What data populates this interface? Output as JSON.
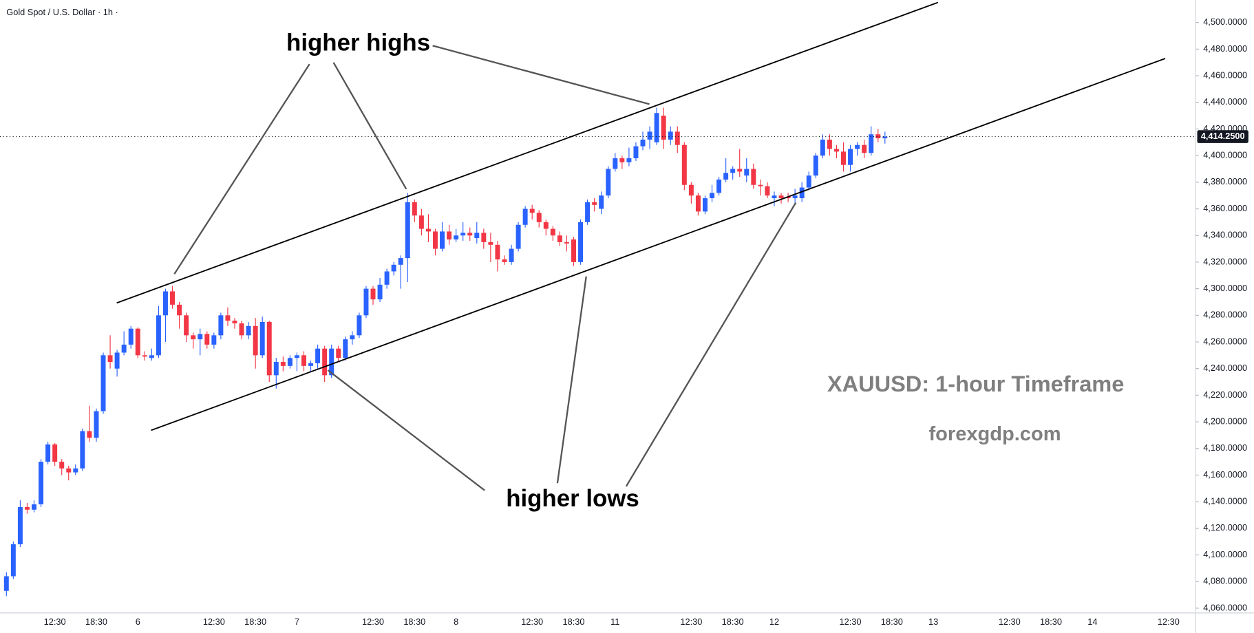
{
  "chart_data": {
    "type": "candlestick",
    "title": "Gold Spot / U.S. Dollar · 1h ·",
    "annotations": [
      "higher highs",
      "higher lows",
      "XAUUSD: 1-hour Timeframe",
      "forexgdp.com"
    ],
    "up_color": "#2962ff",
    "down_color": "#f23645",
    "grid": false,
    "categories": [
      null,
      null,
      null,
      null,
      null,
      null,
      null,
      "12:30",
      null,
      null,
      null,
      null,
      null,
      "18:30",
      null,
      null,
      null,
      null,
      null,
      "6",
      null,
      null,
      null,
      null,
      null,
      null,
      null,
      null,
      null,
      null,
      "12:30",
      null,
      null,
      null,
      null,
      null,
      "18:30",
      null,
      null,
      null,
      null,
      null,
      "7",
      null,
      null,
      null,
      null,
      null,
      null,
      null,
      null,
      null,
      null,
      "12:30",
      null,
      null,
      null,
      null,
      null,
      "18:30",
      null,
      null,
      null,
      null,
      null,
      "8",
      null,
      null,
      null,
      null,
      null,
      null,
      null,
      null,
      null,
      null,
      "12:30",
      null,
      null,
      null,
      null,
      null,
      "18:30",
      null,
      null,
      null,
      null,
      null,
      "11",
      null,
      null,
      null,
      null,
      null,
      null,
      null,
      null,
      null,
      null,
      "12:30",
      null,
      null,
      null,
      null,
      null,
      "18:30",
      null,
      null,
      null,
      null,
      null,
      "12",
      null,
      null,
      null,
      null,
      null,
      null,
      null,
      null,
      null,
      null,
      "12:30",
      null,
      null,
      null,
      null,
      null,
      "18:30",
      null,
      null,
      null,
      null,
      null,
      "13",
      null,
      null,
      null,
      null,
      null,
      null,
      null,
      null,
      null,
      null,
      "12:30",
      null,
      null,
      null,
      null,
      null,
      "18:30",
      null,
      null,
      null,
      null,
      null,
      "14",
      null,
      null,
      null,
      null,
      null,
      null,
      null,
      null,
      null,
      null,
      "12:30",
      null,
      null,
      null
    ],
    "open": [
      4073,
      4084,
      4108,
      4136,
      4134,
      4138,
      4170,
      4183,
      4170,
      4165,
      4162,
      4165,
      4193,
      4188,
      4208,
      4250,
      4240,
      4252,
      4258,
      4270,
      4250,
      4248,
      4250,
      4280,
      4298,
      4288,
      4280,
      4265,
      4262,
      4266,
      4258,
      4265,
      4280,
      4276,
      4274,
      4265,
      4272,
      4250,
      4275,
      4235,
      4245,
      4242,
      4248,
      4250,
      4242,
      4244,
      4255,
      4235,
      4255,
      4248,
      4262,
      4265,
      4280,
      4300,
      4292,
      4303,
      4313,
      4318,
      4323,
      4365,
      4355,
      4345,
      4343,
      4330,
      4343,
      4337,
      4340,
      4342,
      4338,
      4342,
      4335,
      4333,
      4322,
      4320,
      4330,
      4348,
      4360,
      4357,
      4350,
      4345,
      4340,
      4335,
      4337,
      4320,
      4350,
      4365,
      4360,
      4370,
      4390,
      4398,
      4395,
      4398,
      4407,
      4412,
      4410,
      4430,
      4412,
      4418,
      4408,
      4378,
      4370,
      4358,
      4368,
      4372,
      4382,
      4387,
      4390,
      4385,
      4390,
      4378,
      4377,
      4368,
      4370,
      4369,
      4368,
      4368,
      4376,
      4385,
      4400,
      4412,
      4405,
      4403,
      4393,
      4405,
      4408,
      4402,
      4416,
      4413,
      null,
      null,
      null,
      null,
      null,
      null,
      null,
      null,
      null,
      null,
      null,
      null,
      null,
      null,
      null,
      null,
      null,
      null,
      null,
      null,
      null,
      null,
      null,
      null,
      null,
      null,
      null,
      null,
      null,
      null,
      null,
      null,
      null,
      null,
      null,
      null,
      null,
      null,
      null,
      null,
      null,
      null,
      null,
      null
    ],
    "high": [
      4087,
      4110,
      4141,
      4139,
      4141,
      4172,
      4185,
      4184,
      4172,
      4167,
      4168,
      4195,
      4212,
      4210,
      4252,
      4265,
      4254,
      4268,
      4272,
      4271,
      4253,
      4255,
      4287,
      4300,
      4302,
      4290,
      4282,
      4267,
      4270,
      4268,
      4267,
      4282,
      4286,
      4278,
      4276,
      4275,
      4278,
      4279,
      4276,
      4248,
      4249,
      4250,
      4252,
      4253,
      4246,
      4258,
      4257,
      4258,
      4257,
      4264,
      4268,
      4282,
      4302,
      4302,
      4308,
      4315,
      4320,
      4325,
      4372,
      4367,
      4360,
      4356,
      4345,
      4350,
      4348,
      4345,
      4350,
      4346,
      4350,
      4345,
      4342,
      4336,
      4325,
      4333,
      4350,
      4362,
      4363,
      4359,
      4352,
      4347,
      4343,
      4340,
      4339,
      4352,
      4367,
      4368,
      4373,
      4392,
      4402,
      4400,
      4406,
      4410,
      4418,
      4422,
      4436,
      4436,
      4422,
      4422,
      4410,
      4380,
      4372,
      4370,
      4378,
      4384,
      4398,
      4392,
      4405,
      4398,
      4394,
      4382,
      4380,
      4373,
      4372,
      4372,
      4375,
      4380,
      4388,
      4402,
      4416,
      4416,
      4408,
      4410,
      4408,
      4410,
      4412,
      4422,
      4420,
      4418,
      null,
      null,
      null,
      null,
      null,
      null,
      null,
      null,
      null,
      null,
      null,
      null,
      null,
      null,
      null,
      null,
      null,
      null,
      null,
      null,
      null,
      null,
      null,
      null,
      null,
      null,
      null,
      null,
      null,
      null,
      null,
      null,
      null,
      null,
      null,
      null,
      null,
      null,
      null,
      null,
      null,
      null,
      null,
      null
    ],
    "low": [
      4069,
      4082,
      4106,
      4131,
      4132,
      4136,
      4168,
      4167,
      4160,
      4156,
      4160,
      4163,
      4185,
      4185,
      4206,
      4240,
      4234,
      4250,
      4255,
      4248,
      4246,
      4246,
      4248,
      4260,
      4285,
      4270,
      4260,
      4255,
      4250,
      4255,
      4255,
      4262,
      4272,
      4270,
      4262,
      4262,
      4240,
      4248,
      4230,
      4225,
      4238,
      4240,
      4238,
      4238,
      4238,
      4240,
      4230,
      4233,
      4245,
      4246,
      4258,
      4263,
      4278,
      4288,
      4290,
      4300,
      4310,
      4300,
      4305,
      4350,
      4340,
      4335,
      4325,
      4328,
      4333,
      4335,
      4336,
      4336,
      4334,
      4330,
      4320,
      4313,
      4318,
      4318,
      4328,
      4346,
      4352,
      4346,
      4340,
      4336,
      4332,
      4328,
      4317,
      4318,
      4348,
      4358,
      4356,
      4368,
      4388,
      4390,
      4392,
      4396,
      4404,
      4405,
      4408,
      4405,
      4408,
      4402,
      4374,
      4364,
      4355,
      4356,
      4365,
      4370,
      4380,
      4382,
      4384,
      4380,
      4375,
      4370,
      4368,
      4362,
      4364,
      4365,
      4364,
      4365,
      4374,
      4383,
      4398,
      4400,
      4398,
      4388,
      4388,
      4400,
      4398,
      4400,
      4410,
      4409,
      null,
      null,
      null,
      null,
      null,
      null,
      null,
      null,
      null,
      null,
      null,
      null,
      null,
      null,
      null,
      null,
      null,
      null,
      null,
      null,
      null,
      null,
      null,
      null,
      null,
      null,
      null,
      null,
      null,
      null,
      null,
      null,
      null,
      null,
      null,
      null,
      null,
      null,
      null,
      null,
      null,
      null,
      null,
      null
    ],
    "close": [
      4084,
      4108,
      4136,
      4134,
      4138,
      4170,
      4183,
      4170,
      4165,
      4162,
      4165,
      4193,
      4188,
      4208,
      4250,
      4245,
      4252,
      4258,
      4270,
      4250,
      4249,
      4250,
      4280,
      4298,
      4288,
      4280,
      4265,
      4262,
      4266,
      4258,
      4265,
      4280,
      4276,
      4274,
      4265,
      4272,
      4250,
      4275,
      4235,
      4245,
      4242,
      4248,
      4250,
      4242,
      4244,
      4255,
      4235,
      4255,
      4248,
      4262,
      4265,
      4280,
      4300,
      4292,
      4303,
      4313,
      4318,
      4323,
      4365,
      4355,
      4345,
      4343,
      4330,
      4343,
      4337,
      4340,
      4342,
      4340,
      4342,
      4335,
      4333,
      4322,
      4320,
      4330,
      4348,
      4360,
      4357,
      4350,
      4345,
      4340,
      4335,
      4334,
      4320,
      4350,
      4365,
      4363,
      4370,
      4390,
      4398,
      4395,
      4398,
      4407,
      4412,
      4418,
      4432,
      4412,
      4418,
      4408,
      4378,
      4370,
      4358,
      4368,
      4372,
      4382,
      4387,
      4390,
      4388,
      4390,
      4378,
      4377,
      4370,
      4370,
      4368,
      4368,
      4370,
      4376,
      4385,
      4400,
      4412,
      4405,
      4403,
      4393,
      4405,
      4408,
      4402,
      4416,
      4413,
      4414.25,
      null,
      null,
      null,
      null,
      null,
      null,
      null,
      null,
      null,
      null,
      null,
      null,
      null,
      null,
      null,
      null,
      null,
      null,
      null,
      null,
      null,
      null,
      null,
      null,
      null,
      null,
      null,
      null,
      null,
      null,
      null,
      null,
      null,
      null,
      null,
      null,
      null,
      null,
      null,
      null,
      null,
      null,
      null,
      null
    ],
    "last_price": {
      "value": 4414.25,
      "label": "4,414.2500"
    },
    "ylim": [
      4056.4,
      4516.9
    ],
    "yticks": [
      {
        "value": 4060,
        "label": "4,060.0000"
      },
      {
        "value": 4080,
        "label": "4,080.0000"
      },
      {
        "value": 4100,
        "label": "4,100.0000"
      },
      {
        "value": 4120,
        "label": "4,120.0000"
      },
      {
        "value": 4140,
        "label": "4,140.0000"
      },
      {
        "value": 4160,
        "label": "4,160.0000"
      },
      {
        "value": 4180,
        "label": "4,180.0000"
      },
      {
        "value": 4200,
        "label": "4,200.0000"
      },
      {
        "value": 4220,
        "label": "4,220.0000"
      },
      {
        "value": 4240,
        "label": "4,240.0000"
      },
      {
        "value": 4260,
        "label": "4,260.0000"
      },
      {
        "value": 4280,
        "label": "4,280.0000"
      },
      {
        "value": 4300,
        "label": "4,300.0000"
      },
      {
        "value": 4320,
        "label": "4,320.0000"
      },
      {
        "value": 4340,
        "label": "4,340.0000"
      },
      {
        "value": 4360,
        "label": "4,360.0000"
      },
      {
        "value": 4380,
        "label": "4,380.0000"
      },
      {
        "value": 4400,
        "label": "4,400.0000"
      },
      {
        "value": 4420,
        "label": "4,420.0000"
      },
      {
        "value": 4440,
        "label": "4,440.0000"
      },
      {
        "value": 4460,
        "label": "4,460.0000"
      },
      {
        "value": 4480,
        "label": "4,480.0000"
      },
      {
        "value": 4500,
        "label": "4,500.0000"
      }
    ]
  }
}
